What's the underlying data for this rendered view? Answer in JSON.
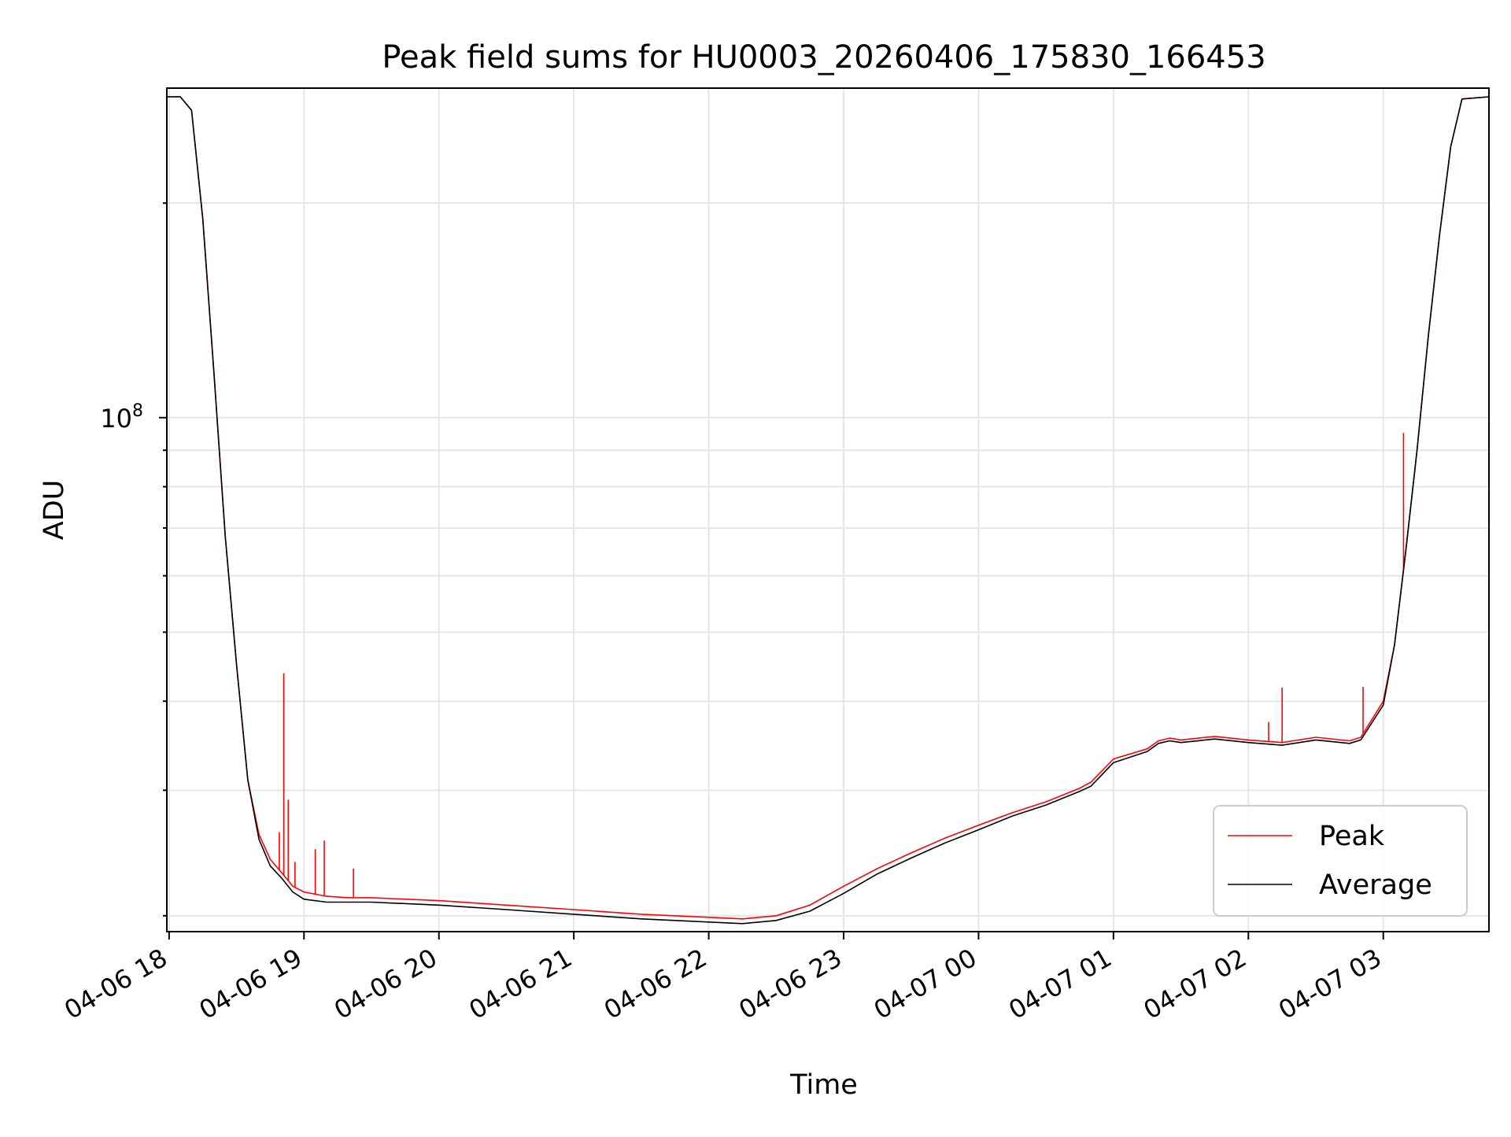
{
  "chart_data": {
    "type": "line",
    "title": "Peak field sums for HU0003_20260406_175830_166453",
    "xlabel": "Time",
    "ylabel": "ADU",
    "yscale": "log",
    "ylim": [
      19000000,
      290000000
    ],
    "xlim": [
      "2026-04-06 17:59",
      "2026-04-07 03:47"
    ],
    "x_ticks": [
      "04-06 18",
      "04-06 19",
      "04-06 20",
      "04-06 21",
      "04-06 22",
      "04-06 23",
      "04-07 00",
      "04-07 01",
      "04-07 02",
      "04-07 03"
    ],
    "x_tick_values": [
      "2026-04-06 18:00",
      "2026-04-06 19:00",
      "2026-04-06 20:00",
      "2026-04-06 21:00",
      "2026-04-06 22:00",
      "2026-04-06 23:00",
      "2026-04-07 00:00",
      "2026-04-07 01:00",
      "2026-04-07 02:00",
      "2026-04-07 03:00"
    ],
    "y_ticks": [
      {
        "value": 100000000,
        "label_base": "10",
        "label_exp": "8"
      }
    ],
    "grid": true,
    "legend_position": "lower right",
    "series": [
      {
        "name": "Peak",
        "color": "#ff0000",
        "x": [
          "2026-04-06 17:59",
          "2026-04-06 18:05",
          "2026-04-06 18:10",
          "2026-04-06 18:15",
          "2026-04-06 18:20",
          "2026-04-06 18:25",
          "2026-04-06 18:30",
          "2026-04-06 18:35",
          "2026-04-06 18:40",
          "2026-04-06 18:45",
          "2026-04-06 18:50",
          "2026-04-06 18:55",
          "2026-04-06 19:00",
          "2026-04-06 19:10",
          "2026-04-06 19:20",
          "2026-04-06 19:30",
          "2026-04-06 20:00",
          "2026-04-06 20:30",
          "2026-04-06 21:00",
          "2026-04-06 21:30",
          "2026-04-06 22:00",
          "2026-04-06 22:15",
          "2026-04-06 22:30",
          "2026-04-06 22:45",
          "2026-04-06 23:00",
          "2026-04-06 23:15",
          "2026-04-06 23:30",
          "2026-04-06 23:45",
          "2026-04-07 00:00",
          "2026-04-07 00:15",
          "2026-04-07 00:30",
          "2026-04-07 00:45",
          "2026-04-07 00:50",
          "2026-04-07 01:00",
          "2026-04-07 01:15",
          "2026-04-07 01:20",
          "2026-04-07 01:25",
          "2026-04-07 01:30",
          "2026-04-07 01:45",
          "2026-04-07 02:00",
          "2026-04-07 02:15",
          "2026-04-07 02:30",
          "2026-04-07 02:45",
          "2026-04-07 02:50",
          "2026-04-07 03:00",
          "2026-04-07 03:05",
          "2026-04-07 03:10",
          "2026-04-07 03:15",
          "2026-04-07 03:20",
          "2026-04-07 03:25",
          "2026-04-07 03:30",
          "2026-04-07 03:35",
          "2026-04-07 03:47"
        ],
        "values": [
          282000000,
          282000000,
          270000000,
          190000000,
          115000000,
          68000000,
          45000000,
          31000000,
          26000000,
          24000000,
          23000000,
          22000000,
          21600000,
          21300000,
          21200000,
          21200000,
          21000000,
          20700000,
          20400000,
          20100000,
          19900000,
          19800000,
          20000000,
          20700000,
          22000000,
          23300000,
          24500000,
          25700000,
          26800000,
          27900000,
          28900000,
          30200000,
          30800000,
          33200000,
          34300000,
          35200000,
          35500000,
          35300000,
          35700000,
          35300000,
          35000000,
          35600000,
          35200000,
          35600000,
          40000000,
          48000000,
          65000000,
          90000000,
          130000000,
          180000000,
          240000000,
          280000000,
          282000000
        ],
        "spikes": [
          {
            "x": "2026-04-06 18:49",
            "value": 26200000
          },
          {
            "x": "2026-04-06 18:51",
            "value": 43800000
          },
          {
            "x": "2026-04-06 18:53",
            "value": 29100000
          },
          {
            "x": "2026-04-06 18:56",
            "value": 23800000
          },
          {
            "x": "2026-04-06 19:05",
            "value": 24800000
          },
          {
            "x": "2026-04-06 19:09",
            "value": 25500000
          },
          {
            "x": "2026-04-06 19:22",
            "value": 23300000
          },
          {
            "x": "2026-04-07 02:09",
            "value": 37400000
          },
          {
            "x": "2026-04-07 02:15",
            "value": 41800000
          },
          {
            "x": "2026-04-07 02:51",
            "value": 41900000
          },
          {
            "x": "2026-04-07 03:09",
            "value": 95200000
          }
        ]
      },
      {
        "name": "Average",
        "color": "#000000",
        "x": [
          "2026-04-06 17:59",
          "2026-04-06 18:05",
          "2026-04-06 18:10",
          "2026-04-06 18:15",
          "2026-04-06 18:20",
          "2026-04-06 18:25",
          "2026-04-06 18:30",
          "2026-04-06 18:35",
          "2026-04-06 18:40",
          "2026-04-06 18:45",
          "2026-04-06 18:50",
          "2026-04-06 18:55",
          "2026-04-06 19:00",
          "2026-04-06 19:10",
          "2026-04-06 19:20",
          "2026-04-06 19:30",
          "2026-04-06 20:00",
          "2026-04-06 20:30",
          "2026-04-06 21:00",
          "2026-04-06 21:30",
          "2026-04-06 22:00",
          "2026-04-06 22:15",
          "2026-04-06 22:30",
          "2026-04-06 22:45",
          "2026-04-06 23:00",
          "2026-04-06 23:15",
          "2026-04-06 23:30",
          "2026-04-06 23:45",
          "2026-04-07 00:00",
          "2026-04-07 00:15",
          "2026-04-07 00:30",
          "2026-04-07 00:45",
          "2026-04-07 00:50",
          "2026-04-07 01:00",
          "2026-04-07 01:15",
          "2026-04-07 01:20",
          "2026-04-07 01:25",
          "2026-04-07 01:30",
          "2026-04-07 01:45",
          "2026-04-07 02:00",
          "2026-04-07 02:15",
          "2026-04-07 02:30",
          "2026-04-07 02:45",
          "2026-04-07 02:50",
          "2026-04-07 03:00",
          "2026-04-07 03:05",
          "2026-04-07 03:10",
          "2026-04-07 03:15",
          "2026-04-07 03:20",
          "2026-04-07 03:25",
          "2026-04-07 03:30",
          "2026-04-07 03:35",
          "2026-04-07 03:47"
        ],
        "values": [
          282000000,
          282000000,
          270000000,
          190000000,
          115000000,
          68000000,
          45000000,
          31000000,
          25600000,
          23500000,
          22600000,
          21600000,
          21100000,
          20900000,
          20900000,
          20900000,
          20700000,
          20400000,
          20100000,
          19800000,
          19600000,
          19500000,
          19700000,
          20300000,
          21500000,
          22900000,
          24100000,
          25300000,
          26400000,
          27600000,
          28600000,
          29900000,
          30400000,
          32800000,
          34000000,
          34900000,
          35200000,
          35000000,
          35400000,
          35000000,
          34700000,
          35300000,
          34900000,
          35300000,
          39500000,
          48000000,
          65000000,
          90000000,
          130000000,
          180000000,
          240000000,
          280000000,
          282000000
        ]
      }
    ]
  }
}
